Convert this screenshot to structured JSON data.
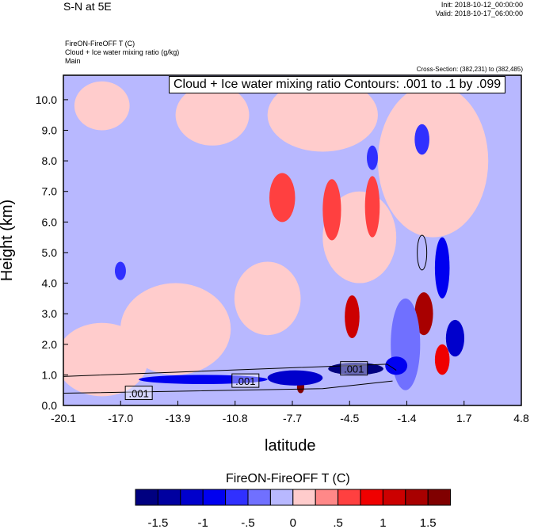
{
  "header": {
    "left_title": "S-N at 5E",
    "init": "Init: 2018-10-12_00:00:00",
    "valid": "Valid: 2018-10-17_06:00:00",
    "line1": "FireON-FireOFF T   (C)",
    "line2": "Cloud + Ice water mixing ratio   (g/kg)",
    "line3": "Main",
    "cross_section": "Cross-Section: (382,231) to (382,485)"
  },
  "chart_data": {
    "type": "heatmap",
    "title": "Cloud + Ice water mixing ratio Contours: .001 to .1 by .099",
    "xlabel": "latitude",
    "ylabel": "Height (km)",
    "xlim": [
      -20.1,
      4.8
    ],
    "ylim": [
      0,
      10.8
    ],
    "xticks": [
      "-20.1",
      "-17.0",
      "-13.9",
      "-10.8",
      "-7.7",
      "-4.5",
      "-1.4",
      "1.7",
      "4.8"
    ],
    "yticks": [
      "0.0",
      "1.0",
      "2.0",
      "3.0",
      "4.0",
      "5.0",
      "6.0",
      "7.0",
      "8.0",
      "9.0",
      "10.0"
    ],
    "contour_labels": [
      {
        "text": ".001",
        "lat": -16.0,
        "h": 0.4
      },
      {
        "text": ".001",
        "lat": -10.2,
        "h": 0.8
      },
      {
        "text": ".001",
        "lat": -4.3,
        "h": 1.2
      }
    ],
    "features": [
      {
        "lat": -18,
        "h": 1.5,
        "rx": 2.5,
        "ry": 1.2,
        "v": 0.1
      },
      {
        "lat": -14,
        "h": 2.5,
        "rx": 3,
        "ry": 1.5,
        "v": 0.1
      },
      {
        "lat": -9,
        "h": 3.5,
        "rx": 1.8,
        "ry": 1.2,
        "v": 0.1
      },
      {
        "lat": -18,
        "h": 9.8,
        "rx": 1.5,
        "ry": 0.8,
        "v": 0.1
      },
      {
        "lat": -12,
        "h": 9.5,
        "rx": 2,
        "ry": 1,
        "v": 0.1
      },
      {
        "lat": -6,
        "h": 9.5,
        "rx": 3,
        "ry": 1.2,
        "v": 0.1
      },
      {
        "lat": 0,
        "h": 8,
        "rx": 3,
        "ry": 2.5,
        "v": 0.1
      },
      {
        "lat": -4,
        "h": 5.5,
        "rx": 2,
        "ry": 1.5,
        "v": 0.1
      },
      {
        "lat": -8.2,
        "h": 6.8,
        "rx": 0.7,
        "ry": 0.8,
        "v": 0.5
      },
      {
        "lat": -5.5,
        "h": 6.4,
        "rx": 0.5,
        "ry": 1.0,
        "v": 0.5
      },
      {
        "lat": -3.3,
        "h": 6.5,
        "rx": 0.4,
        "ry": 1.0,
        "v": 0.5
      },
      {
        "lat": -4.4,
        "h": 2.9,
        "rx": 0.4,
        "ry": 0.7,
        "v": 1.0
      },
      {
        "lat": -0.5,
        "h": 3.0,
        "rx": 0.5,
        "ry": 0.7,
        "v": 1.3
      },
      {
        "lat": -7.2,
        "h": 0.6,
        "rx": 0.2,
        "ry": 0.2,
        "v": 1.5
      },
      {
        "lat": 0.5,
        "h": 1.5,
        "rx": 0.4,
        "ry": 0.5,
        "v": 0.8
      },
      {
        "lat": -0.6,
        "h": 8.7,
        "rx": 0.4,
        "ry": 0.5,
        "v": -0.6
      },
      {
        "lat": -1.5,
        "h": 2.0,
        "rx": 0.8,
        "ry": 1.5,
        "v": -0.4
      },
      {
        "lat": 0.5,
        "h": 4.5,
        "rx": 0.4,
        "ry": 1.0,
        "v": -1.0
      },
      {
        "lat": 1.2,
        "h": 2.2,
        "rx": 0.5,
        "ry": 0.6,
        "v": -1.2
      },
      {
        "lat": -12.5,
        "h": 0.85,
        "rx": 3.5,
        "ry": 0.15,
        "v": -1.0
      },
      {
        "lat": -7.5,
        "h": 0.9,
        "rx": 1.5,
        "ry": 0.25,
        "v": -1.1
      },
      {
        "lat": -4.2,
        "h": 1.2,
        "rx": 1.5,
        "ry": 0.2,
        "v": -1.6
      },
      {
        "lat": -2,
        "h": 1.3,
        "rx": 0.6,
        "ry": 0.3,
        "v": -1.0
      },
      {
        "lat": -17,
        "h": 4.4,
        "rx": 0.3,
        "ry": 0.3,
        "v": -0.6
      },
      {
        "lat": -3.3,
        "h": 8.1,
        "rx": 0.3,
        "ry": 0.4,
        "v": -0.6
      }
    ],
    "colorbar": {
      "title": "FireON-FireOFF T  (C)",
      "labels": [
        "-1.5",
        "-1",
        "-.5",
        "0",
        ".5",
        "1",
        "1.5"
      ],
      "levels": [
        -1.75,
        -1.5,
        -1.25,
        -1,
        -0.75,
        -0.5,
        -0.25,
        0,
        0.25,
        0.5,
        0.75,
        1,
        1.25,
        1.5,
        1.75
      ],
      "colors": [
        "#000080",
        "#0000a0",
        "#0000cc",
        "#0000f0",
        "#3030ff",
        "#7070ff",
        "#b8b8ff",
        "#ffcccc",
        "#ff8888",
        "#ff4040",
        "#f00000",
        "#cc0000",
        "#a80000",
        "#800000"
      ]
    }
  }
}
